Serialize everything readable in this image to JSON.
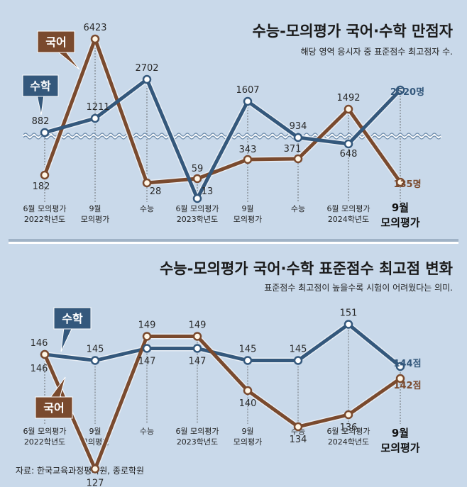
{
  "colors": {
    "math": "#34587c",
    "korean": "#7a4a2e",
    "background": "#c9d9ea",
    "marker_fill": "#ffffff",
    "korean_marker_fill": "#fff6e6"
  },
  "source": "자료: 한국교육과정평가원, 종로학원",
  "chart_data": [
    {
      "type": "line",
      "title": "수능-모의평가 국어·수학 만점자",
      "subtitle": "해당 영역 응시자 중 표준점수 최고점자 수.",
      "categories": [
        "6월 모의평가 2022학년도",
        "9월 모의평가",
        "수능",
        "6월 모의평가 2023학년도",
        "9월 모의평가",
        "수능",
        "6월 모의평가 2024학년도",
        "9월 모의평가"
      ],
      "category_lines": [
        [
          "6월 모의평가",
          "2022학년도"
        ],
        [
          "9월",
          "모의평가"
        ],
        [
          "수능"
        ],
        [
          "6월 모의평가",
          "2023학년도"
        ],
        [
          "9월",
          "모의평가"
        ],
        [
          "수능"
        ],
        [
          "6월 모의평가",
          "2024학년도"
        ],
        [
          "9월",
          "모의평가"
        ]
      ],
      "series": [
        {
          "name": "수학",
          "values": [
            882,
            1211,
            2702,
            13,
            1607,
            934,
            648,
            2520
          ],
          "labels": [
            "882",
            "1211",
            "2702",
            "13",
            "1607",
            "934",
            "648",
            "2520명"
          ]
        },
        {
          "name": "국어",
          "values": [
            182,
            6423,
            28,
            59,
            343,
            371,
            1492,
            135
          ],
          "labels": [
            "182",
            "6423",
            "28",
            "59",
            "343",
            "371",
            "1492",
            "135명"
          ]
        }
      ],
      "axis_break": true,
      "grid": false,
      "unit": "명"
    },
    {
      "type": "line",
      "title": "수능-모의평가 국어·수학 표준점수 최고점 변화",
      "subtitle": "표준점수 최고점이 높을수록 시험이 어려웠다는 의미.",
      "categories": [
        "6월 모의평가 2022학년도",
        "9월 모의평가",
        "수능",
        "6월 모의평가 2023학년도",
        "9월 모의평가",
        "수능",
        "6월 모의평가 2024학년도",
        "9월 모의평가"
      ],
      "category_lines": [
        [
          "6월 모의평가",
          "2022학년도"
        ],
        [
          "9월",
          "모의평가"
        ],
        [
          "수능"
        ],
        [
          "6월 모의평가",
          "2023학년도"
        ],
        [
          "9월",
          "모의평가"
        ],
        [
          "수능"
        ],
        [
          "6월 모의평가",
          "2024학년도"
        ],
        [
          "9월",
          "모의평가"
        ]
      ],
      "series": [
        {
          "name": "수학",
          "values": [
            146,
            145,
            147,
            147,
            145,
            145,
            151,
            144
          ],
          "labels": [
            "146",
            "145",
            "147",
            "147",
            "145",
            "145",
            "151",
            "144점"
          ]
        },
        {
          "name": "국어",
          "values": [
            146,
            127,
            149,
            149,
            140,
            134,
            136,
            142
          ],
          "labels": [
            "146",
            "127",
            "149",
            "149",
            "140",
            "134",
            "136",
            "142점"
          ]
        }
      ],
      "grid": false,
      "unit": "점"
    }
  ]
}
